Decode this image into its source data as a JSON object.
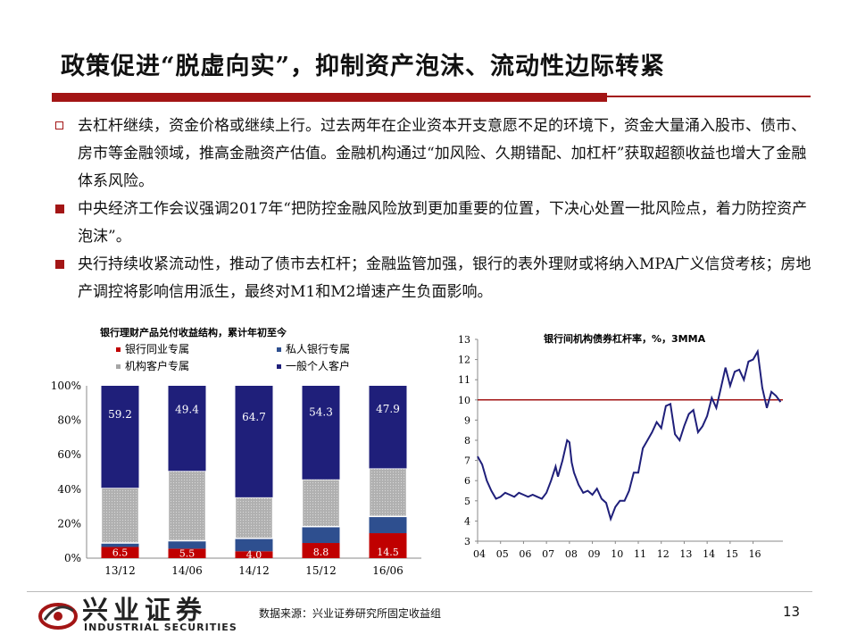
{
  "title": "政策促进“脱虚向实”，抑制资产泡沫、流动性边际转紧",
  "bullets": [
    {
      "style": "hollow",
      "text": "去杠杆继续，资金价格或继续上行。过去两年在企业资本开支意愿不足的环境下，资金大量涌入股市、债市、房市等金融领域，推高金融资产估值。金融机构通过“加风险、久期错配、加杠杆”获取超额收益也增大了金融体系风险。"
    },
    {
      "style": "solid",
      "text": "中央经济工作会议强调2017年“把防控金融风险放到更加重要的位置，下决心处置一批风险点，着力防控资产泡沫”。"
    },
    {
      "style": "solid",
      "text": "央行持续收紧流动性，推动了债市去杠杆；金融监管加强，银行的表外理财或将纳入MPA广义信贷考核；房地产调控将影响信用派生，最终对M1和M2增速产生负面影响。"
    }
  ],
  "colors": {
    "accent": "#a31515",
    "bank_interbank": "#c00000",
    "private_bank": "#2e4f8f",
    "institutional": "#a6a6a6",
    "retail": "#1f1f7a"
  },
  "chart_data": [
    {
      "type": "bar",
      "title": "银行理财产品兑付收益结构，累计年初至今",
      "categories": [
        "13/12",
        "14/06",
        "14/12",
        "15/12",
        "16/06"
      ],
      "series": [
        {
          "name": "银行同业专属",
          "values": [
            6.5,
            5.5,
            4.0,
            8.8,
            14.5
          ]
        },
        {
          "name": "私人银行专属",
          "values": [
            2.3,
            4.6,
            7.5,
            9.5,
            9.7
          ]
        },
        {
          "name": "机构客户专属",
          "values": [
            32.0,
            40.5,
            23.8,
            27.4,
            27.9
          ]
        },
        {
          "name": "一般个人客户",
          "values": [
            59.2,
            49.4,
            64.7,
            54.3,
            47.9
          ]
        }
      ],
      "data_labels": [
        "6.5",
        "5.5",
        "4.0",
        "8.8",
        "14.5",
        "59.2",
        "49.4",
        "64.7",
        "54.3",
        "47.9"
      ],
      "yticks": [
        "0%",
        "20%",
        "40%",
        "60%",
        "80%",
        "100%"
      ],
      "ylim": [
        0,
        100
      ],
      "legend": "top",
      "grid": false
    },
    {
      "type": "line",
      "title": "银行间机构债券杠杆率，%，3MMA",
      "xticks": [
        "04",
        "05",
        "06",
        "07",
        "08",
        "09",
        "10",
        "11",
        "12",
        "13",
        "14",
        "15",
        "16"
      ],
      "yticks": [
        "3",
        "4",
        "5",
        "6",
        "7",
        "8",
        "9",
        "10",
        "11",
        "12",
        "13"
      ],
      "ylim": [
        3,
        13
      ],
      "xlim": [
        2004.0,
        2017.3
      ],
      "reference_line": 10,
      "x": [
        2004.0,
        2004.2,
        2004.4,
        2004.6,
        2004.8,
        2005.0,
        2005.2,
        2005.4,
        2005.6,
        2005.8,
        2006.0,
        2006.2,
        2006.4,
        2006.6,
        2006.8,
        2007.0,
        2007.2,
        2007.4,
        2007.5,
        2007.7,
        2007.9,
        2008.0,
        2008.1,
        2008.2,
        2008.4,
        2008.6,
        2008.8,
        2009.0,
        2009.2,
        2009.4,
        2009.6,
        2009.8,
        2010.0,
        2010.2,
        2010.4,
        2010.6,
        2010.8,
        2011.0,
        2011.2,
        2011.4,
        2011.6,
        2011.8,
        2012.0,
        2012.2,
        2012.4,
        2012.6,
        2012.8,
        2013.0,
        2013.2,
        2013.4,
        2013.6,
        2013.8,
        2014.0,
        2014.2,
        2014.4,
        2014.6,
        2014.8,
        2015.0,
        2015.2,
        2015.4,
        2015.6,
        2015.8,
        2016.0,
        2016.2,
        2016.4,
        2016.6,
        2016.8,
        2017.0,
        2017.2
      ],
      "y": [
        7.2,
        6.8,
        6.0,
        5.5,
        5.1,
        5.2,
        5.4,
        5.3,
        5.2,
        5.4,
        5.3,
        5.2,
        5.3,
        5.2,
        5.1,
        5.4,
        6.0,
        6.7,
        6.2,
        7.0,
        8.0,
        7.9,
        6.9,
        6.4,
        5.8,
        5.4,
        5.5,
        5.3,
        5.6,
        5.1,
        4.9,
        4.1,
        4.7,
        5.0,
        5.0,
        5.5,
        6.4,
        6.4,
        7.6,
        8.0,
        8.4,
        8.9,
        8.6,
        9.7,
        9.8,
        8.3,
        8.0,
        8.7,
        9.3,
        9.5,
        8.4,
        8.7,
        9.2,
        10.1,
        9.6,
        10.6,
        11.6,
        10.7,
        11.4,
        11.5,
        11.0,
        11.9,
        12.0,
        12.4,
        10.6,
        9.6,
        10.4,
        10.2,
        9.9
      ]
    }
  ],
  "source": "数据来源：兴业证券研究所固定收益组",
  "page_number": "13",
  "logo": {
    "cn": "兴业证券",
    "en": "INDUSTRIAL SECURITIES"
  }
}
